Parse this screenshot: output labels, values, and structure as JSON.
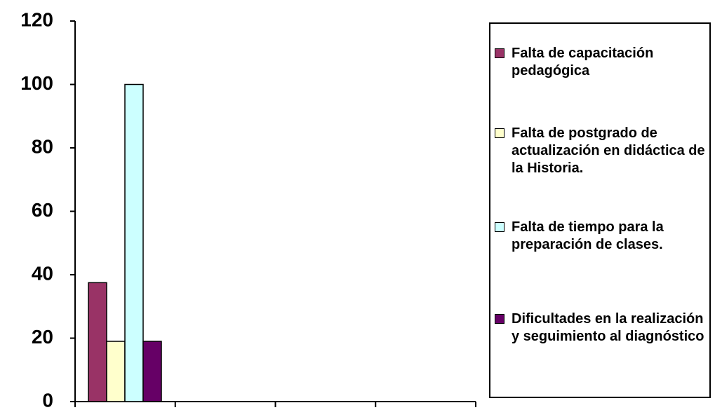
{
  "chart_data": {
    "type": "bar",
    "categories": [
      null,
      null,
      null,
      null
    ],
    "series": [
      {
        "name": "Falta de capacitación pedagógica",
        "color": "#993366",
        "values": [
          37.5,
          null,
          null,
          null
        ]
      },
      {
        "name": "Falta de postgrado de actualización en didáctica de la Historia.",
        "color": "#ffffcc",
        "values": [
          19,
          null,
          null,
          null
        ]
      },
      {
        "name": "Falta de tiempo para la preparación de clases.",
        "color": "#ccffff",
        "values": [
          100,
          null,
          null,
          null
        ]
      },
      {
        "name": "Dificultades en la realización y seguimiento al diagnóstico",
        "color": "#660066",
        "values": [
          19,
          null,
          null,
          null
        ]
      }
    ],
    "ylim": [
      0,
      120
    ],
    "yticks": [
      0,
      20,
      40,
      60,
      80,
      100,
      120
    ],
    "legend": "right"
  }
}
